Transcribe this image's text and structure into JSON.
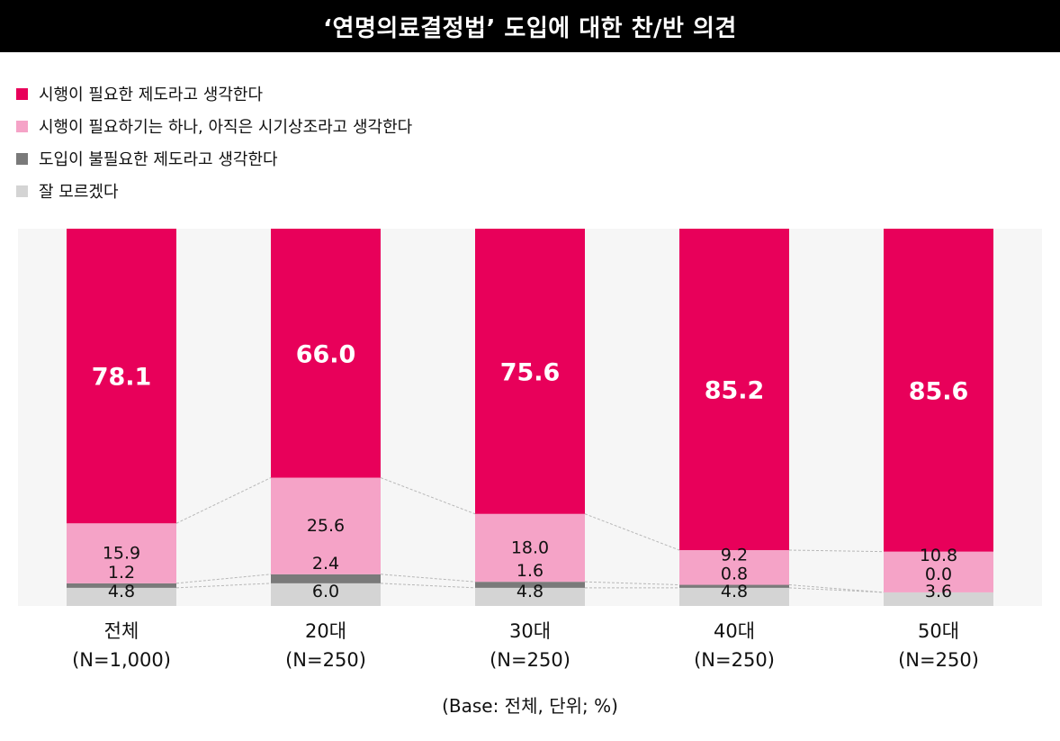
{
  "title": "‘연명의료결정법’ 도입에 대한 찬/반 의견",
  "footnote": "(Base: 전체, 단위; %)",
  "colors": {
    "title_bg": "#000000",
    "plot_bg": "#f6f6f6",
    "necessary": "#e8005a",
    "premature": "#f5a3c7",
    "unnecessary": "#7a7a7a",
    "unknown": "#d4d4d4"
  },
  "legend": [
    {
      "label": "시행이 필요한 제도라고 생각한다",
      "color": "#e8005a"
    },
    {
      "label": "시행이 필요하기는 하나, 아직은 시기상조라고 생각한다",
      "color": "#f5a3c7"
    },
    {
      "label": "도입이 불필요한 제도라고 생각한다",
      "color": "#7a7a7a"
    },
    {
      "label": "잘 모르겠다",
      "color": "#d4d4d4"
    }
  ],
  "chart_data": {
    "type": "bar",
    "stacked": true,
    "categories": [
      "전체",
      "20대",
      "30대",
      "40대",
      "50대"
    ],
    "category_sublabels": [
      "(N=1,000)",
      "(N=250)",
      "(N=250)",
      "(N=250)",
      "(N=250)"
    ],
    "ylim": [
      0,
      100
    ],
    "series": [
      {
        "name": "잘 모르겠다",
        "color": "#d4d4d4",
        "values": [
          4.8,
          6.0,
          4.8,
          4.8,
          3.6
        ]
      },
      {
        "name": "도입이 불필요한 제도라고 생각한다",
        "color": "#7a7a7a",
        "values": [
          1.2,
          2.4,
          1.6,
          0.8,
          0.0
        ]
      },
      {
        "name": "시행이 필요하기는 하나, 아직은 시기상조라고 생각한다",
        "color": "#f5a3c7",
        "values": [
          15.9,
          25.6,
          18.0,
          9.2,
          10.8
        ]
      },
      {
        "name": "시행이 필요한 제도라고 생각한다",
        "color": "#e8005a",
        "values": [
          78.1,
          66.0,
          75.6,
          85.2,
          85.6
        ]
      }
    ],
    "value_labels": [
      [
        "4.8",
        "6.0",
        "4.8",
        "4.8",
        "3.6"
      ],
      [
        "1.2",
        "2.4",
        "1.6",
        "0.8",
        "0.0"
      ],
      [
        "15.9",
        "25.6",
        "18.0",
        "9.2",
        "10.8"
      ],
      [
        "78.1",
        "66.0",
        "75.6",
        "85.2",
        "85.6"
      ]
    ]
  }
}
